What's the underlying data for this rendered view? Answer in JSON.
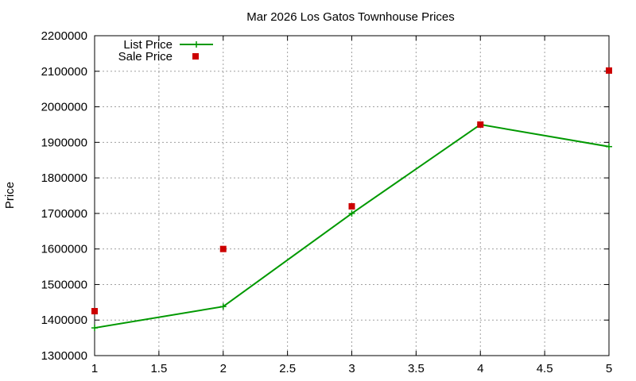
{
  "chart_data": {
    "type": "line",
    "title": "Mar 2026 Los Gatos Townhouse Prices",
    "ylabel": "Price",
    "xlabel": "",
    "xlim": [
      1,
      5
    ],
    "ylim": [
      1300000,
      2200000
    ],
    "x_ticks": [
      "1",
      "1.5",
      "2",
      "2.5",
      "3",
      "3.5",
      "4",
      "4.5",
      "5"
    ],
    "y_ticks": [
      "1300000",
      "1400000",
      "1500000",
      "1600000",
      "1700000",
      "1800000",
      "1900000",
      "2000000",
      "2100000",
      "2200000"
    ],
    "grid": true,
    "legend_position": "top-left",
    "series": [
      {
        "name": "List Price",
        "style": "line-with-plus-markers",
        "color": "#009900",
        "x": [
          1,
          2,
          3,
          4,
          5
        ],
        "y": [
          1378000,
          1438000,
          1700000,
          1950000,
          1888000
        ]
      },
      {
        "name": "Sale Price",
        "style": "square-markers",
        "color": "#cc0000",
        "x": [
          1,
          2,
          3,
          4,
          5
        ],
        "y": [
          1425000,
          1600000,
          1720000,
          1950000,
          2102000
        ]
      }
    ]
  }
}
